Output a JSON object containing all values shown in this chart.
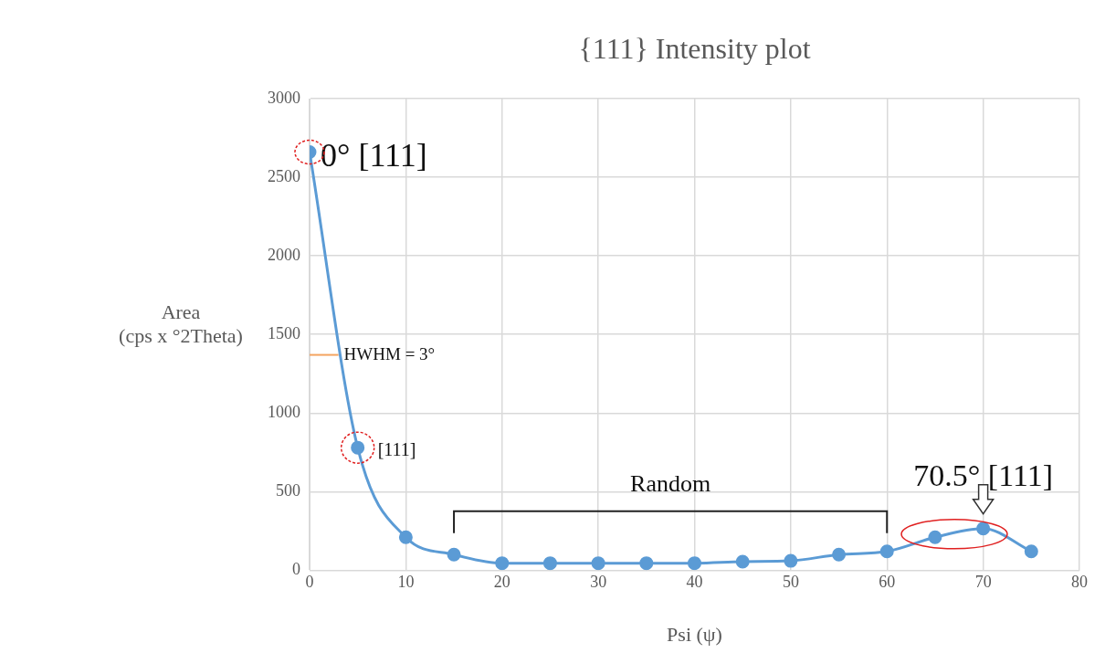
{
  "chart_data": {
    "type": "line",
    "title": "{111} Intensity plot",
    "xlabel": "Psi (ψ)",
    "ylabel": "Area\n(cps x °2Theta)",
    "x": [
      0,
      5,
      10,
      15,
      20,
      25,
      30,
      35,
      40,
      45,
      50,
      55,
      60,
      65,
      70,
      75
    ],
    "series": [
      {
        "color": "#5b9bd5",
        "values": [
          2660,
          780,
          210,
          100,
          45,
          45,
          45,
          45,
          45,
          55,
          60,
          100,
          120,
          210,
          265,
          120
        ]
      },
      {
        "type": "line",
        "x": [
          0,
          3
        ],
        "values": [
          1370,
          1370
        ],
        "color": "#f4a460",
        "marker": "none"
      }
    ],
    "xlim": [
      0,
      80
    ],
    "xticks": [
      0,
      10,
      20,
      30,
      40,
      50,
      60,
      70,
      80
    ],
    "ylim": [
      0,
      3000
    ],
    "yticks": [
      0,
      500,
      1000,
      1500,
      2000,
      2500,
      3000
    ],
    "grid": true,
    "legend": false,
    "marker": "circle",
    "line_style": "solid",
    "annotations": [
      {
        "text": "0° [111]",
        "x": 0,
        "y": 2660
      },
      {
        "text": "HWHM = 3°",
        "x": 3,
        "y": 1370
      },
      "Random",
      {
        "text": "[111]",
        "x": 5,
        "y": 780
      },
      {
        "text": "70.5° [111]",
        "x": 70,
        "y": 265
      }
    ]
  }
}
